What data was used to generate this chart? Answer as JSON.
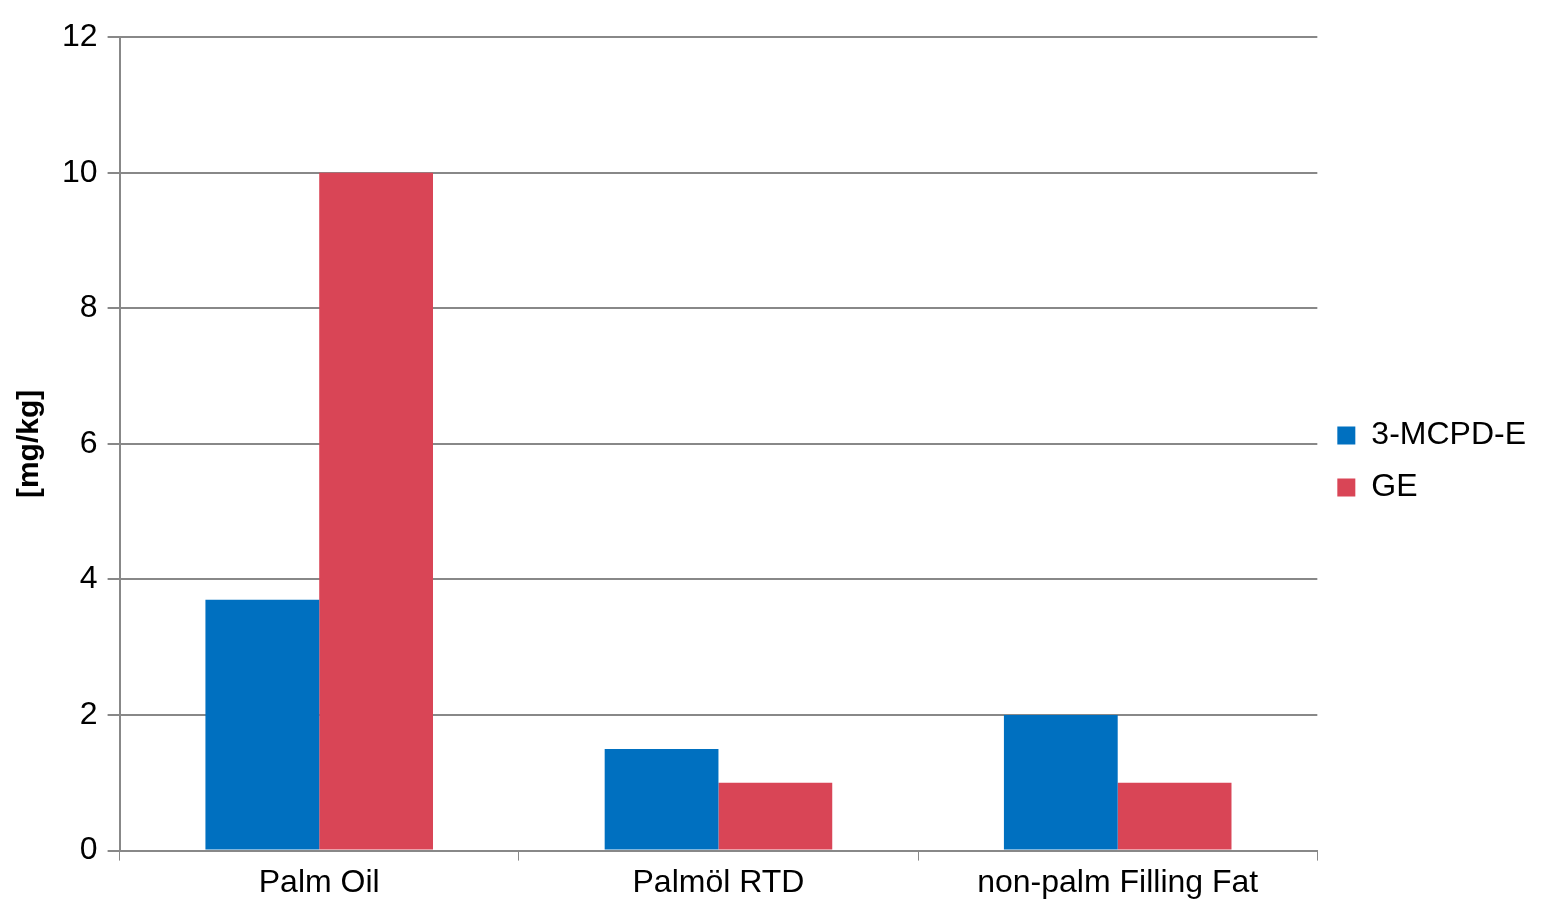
{
  "chart_data": {
    "type": "bar",
    "ylabel": "[mg/kg]",
    "categories": [
      "Palm Oil",
      "Palmöl RTD",
      "non-palm Filling Fat"
    ],
    "series": [
      {
        "name": "3-MCPD-E",
        "color": "#0070c0",
        "values": [
          3.7,
          1.5,
          2.0
        ]
      },
      {
        "name": "GE",
        "color": "#d94556",
        "values": [
          10.0,
          1.0,
          1.0
        ]
      }
    ],
    "ylim": [
      0,
      12
    ],
    "yticks": [
      0,
      2,
      4,
      6,
      8,
      10,
      12
    ],
    "grid": "y",
    "legend": "right"
  }
}
